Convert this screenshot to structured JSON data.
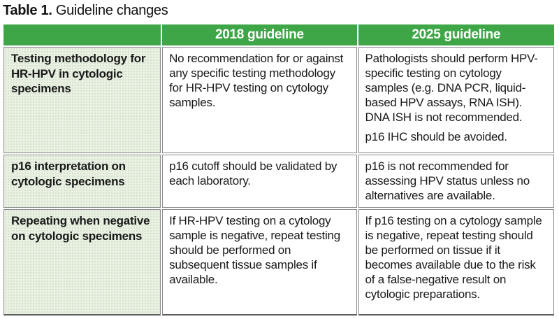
{
  "title": {
    "prefix": "Table 1.",
    "text": " Guideline changes"
  },
  "header": {
    "col_empty": "",
    "col_2018": "2018 guideline",
    "col_2025": "2025 guideline"
  },
  "rows": [
    {
      "label": "Testing methodology for HR-HPV in cytologic specimens",
      "c2018": [
        "No recommendation for or against any specific testing methodology for HR-HPV testing on cytology samples."
      ],
      "c2025": [
        "Pathologists should perform HPV-specific testing on cytology samples (e.g. DNA PCR, liquid-based HPV assays, RNA ISH). DNA ISH is not recommended.",
        "p16 IHC should be avoided."
      ]
    },
    {
      "label": "p16 interpretation on cytologic specimens",
      "c2018": [
        "p16 cutoff should be validated by each laboratory."
      ],
      "c2025": [
        "p16 is not recommended for assessing HPV status unless no alternatives are available."
      ]
    },
    {
      "label": "Repeating when negative on cytologic specimens",
      "c2018": [
        "If HR-HPV testing on a cytology sample is negative, repeat testing should be performed on subsequent tissue samples if available."
      ],
      "c2025": [
        "If p16 testing on a cytology sample is negative, repeat testing should be performed on tissue if it becomes available due to the risk of a false-negative result on cytologic preparations."
      ]
    }
  ],
  "colors": {
    "header_green": "#3ea647",
    "label_cell_green": "#e9f1e3",
    "cell_border_gray": "#8a8a8a",
    "outer_bottom_border": "#5c5c5c",
    "header_text": "#ffffff",
    "body_text": "#1a1a1a"
  }
}
